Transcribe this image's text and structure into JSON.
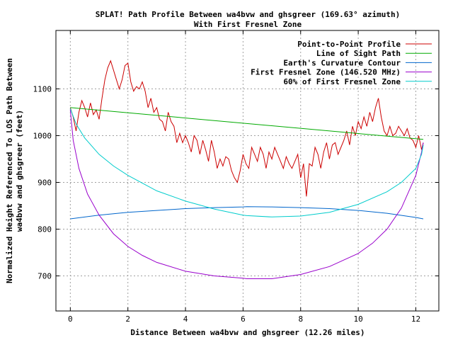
{
  "chart_data": {
    "type": "line",
    "title": "SPLAT! Path Profile Between wa4bvw and ghsgreer (169.63° azimuth)",
    "subtitle": "With First Fresnel Zone",
    "xlabel": "Distance Between wa4bvw and ghsgreer (12.26 miles)",
    "ylabel_line1": "Normalized Height Referenced To LOS Path Between",
    "ylabel_line2": "wa4bvw and ghsgreer (feet)",
    "xlim": [
      -0.5,
      12.8
    ],
    "ylim": [
      625,
      1225
    ],
    "x_ticks": [
      0,
      2,
      4,
      6,
      8,
      10,
      12
    ],
    "y_ticks": [
      700,
      800,
      900,
      1000,
      1100
    ],
    "grid": true,
    "legend_position": "top-right",
    "series": [
      {
        "name": "Point-to-Point Profile",
        "color": "#cc0000",
        "x": [
          0,
          0.1,
          0.2,
          0.3,
          0.4,
          0.5,
          0.6,
          0.7,
          0.8,
          0.9,
          1.0,
          1.1,
          1.2,
          1.3,
          1.4,
          1.5,
          1.6,
          1.7,
          1.8,
          1.9,
          2.0,
          2.1,
          2.2,
          2.3,
          2.4,
          2.5,
          2.6,
          2.7,
          2.8,
          2.9,
          3.0,
          3.1,
          3.2,
          3.3,
          3.4,
          3.5,
          3.6,
          3.7,
          3.8,
          3.9,
          4.0,
          4.1,
          4.2,
          4.3,
          4.4,
          4.5,
          4.6,
          4.7,
          4.8,
          4.9,
          5.0,
          5.1,
          5.2,
          5.3,
          5.4,
          5.5,
          5.6,
          5.7,
          5.8,
          5.9,
          6.0,
          6.1,
          6.2,
          6.3,
          6.4,
          6.5,
          6.6,
          6.7,
          6.8,
          6.9,
          7.0,
          7.1,
          7.2,
          7.3,
          7.4,
          7.5,
          7.6,
          7.7,
          7.8,
          7.9,
          8.0,
          8.1,
          8.2,
          8.3,
          8.4,
          8.5,
          8.6,
          8.7,
          8.8,
          8.9,
          9.0,
          9.1,
          9.2,
          9.3,
          9.4,
          9.5,
          9.6,
          9.7,
          9.8,
          9.9,
          10.0,
          10.1,
          10.2,
          10.3,
          10.4,
          10.5,
          10.6,
          10.7,
          10.8,
          10.9,
          11.0,
          11.1,
          11.2,
          11.3,
          11.4,
          11.5,
          11.6,
          11.7,
          11.8,
          11.9,
          12.0,
          12.1,
          12.2,
          12.26
        ],
        "y": [
          1060,
          1040,
          1010,
          1050,
          1075,
          1060,
          1040,
          1070,
          1045,
          1055,
          1035,
          1080,
          1120,
          1145,
          1160,
          1140,
          1120,
          1100,
          1120,
          1150,
          1155,
          1115,
          1095,
          1105,
          1100,
          1115,
          1095,
          1060,
          1080,
          1050,
          1060,
          1035,
          1030,
          1010,
          1050,
          1030,
          1020,
          985,
          1005,
          985,
          1000,
          985,
          965,
          1000,
          990,
          960,
          990,
          970,
          945,
          990,
          965,
          930,
          950,
          935,
          955,
          950,
          925,
          910,
          900,
          925,
          960,
          940,
          930,
          975,
          960,
          945,
          975,
          960,
          930,
          965,
          950,
          975,
          960,
          945,
          930,
          955,
          940,
          930,
          945,
          960,
          910,
          940,
          870,
          940,
          935,
          975,
          960,
          930,
          965,
          985,
          950,
          980,
          985,
          960,
          975,
          990,
          1010,
          980,
          1020,
          1000,
          1030,
          1015,
          1040,
          1020,
          1050,
          1030,
          1060,
          1080,
          1040,
          1010,
          1000,
          1020,
          1000,
          1005,
          1020,
          1010,
          1000,
          1015,
          995,
          990,
          975,
          1000,
          970,
          985
        ]
      },
      {
        "name": "Line of Sight Path",
        "color": "#00aa00",
        "x": [
          0,
          12.26
        ],
        "y": [
          1060,
          992
        ]
      },
      {
        "name": "Earth's Curvature Contour",
        "color": "#0066cc",
        "x": [
          0,
          1,
          2,
          3,
          4,
          5,
          6,
          6.13,
          7,
          8,
          9,
          10,
          11,
          12,
          12.26
        ],
        "y": [
          822,
          830,
          836,
          840,
          844,
          846,
          847.5,
          848,
          847.5,
          846,
          844,
          840,
          834,
          825,
          822
        ]
      },
      {
        "name": "First Fresnel Zone (146.520 MHz)",
        "color": "#9900cc",
        "x": [
          0,
          0.1,
          0.3,
          0.6,
          1,
          1.5,
          2,
          2.5,
          3,
          4,
          5,
          6,
          6.13,
          7,
          8,
          9,
          10,
          10.5,
          11,
          11.5,
          12,
          12.2,
          12.26
        ],
        "y": [
          1055,
          990,
          930,
          875,
          830,
          790,
          763,
          744,
          729,
          710,
          700,
          695,
          694,
          694,
          703,
          720,
          748,
          770,
          800,
          845,
          915,
          965,
          985
        ]
      },
      {
        "name": "60% of First Fresnel Zone",
        "color": "#00cccc",
        "x": [
          0,
          0.2,
          0.5,
          1,
          1.5,
          2,
          3,
          4,
          5,
          6,
          6.13,
          7,
          8,
          9,
          10,
          11,
          11.5,
          12,
          12.2,
          12.26
        ],
        "y": [
          1058,
          1025,
          995,
          960,
          935,
          915,
          882,
          860,
          843,
          830,
          829,
          826,
          828,
          836,
          853,
          880,
          900,
          930,
          960,
          980
        ]
      }
    ]
  }
}
